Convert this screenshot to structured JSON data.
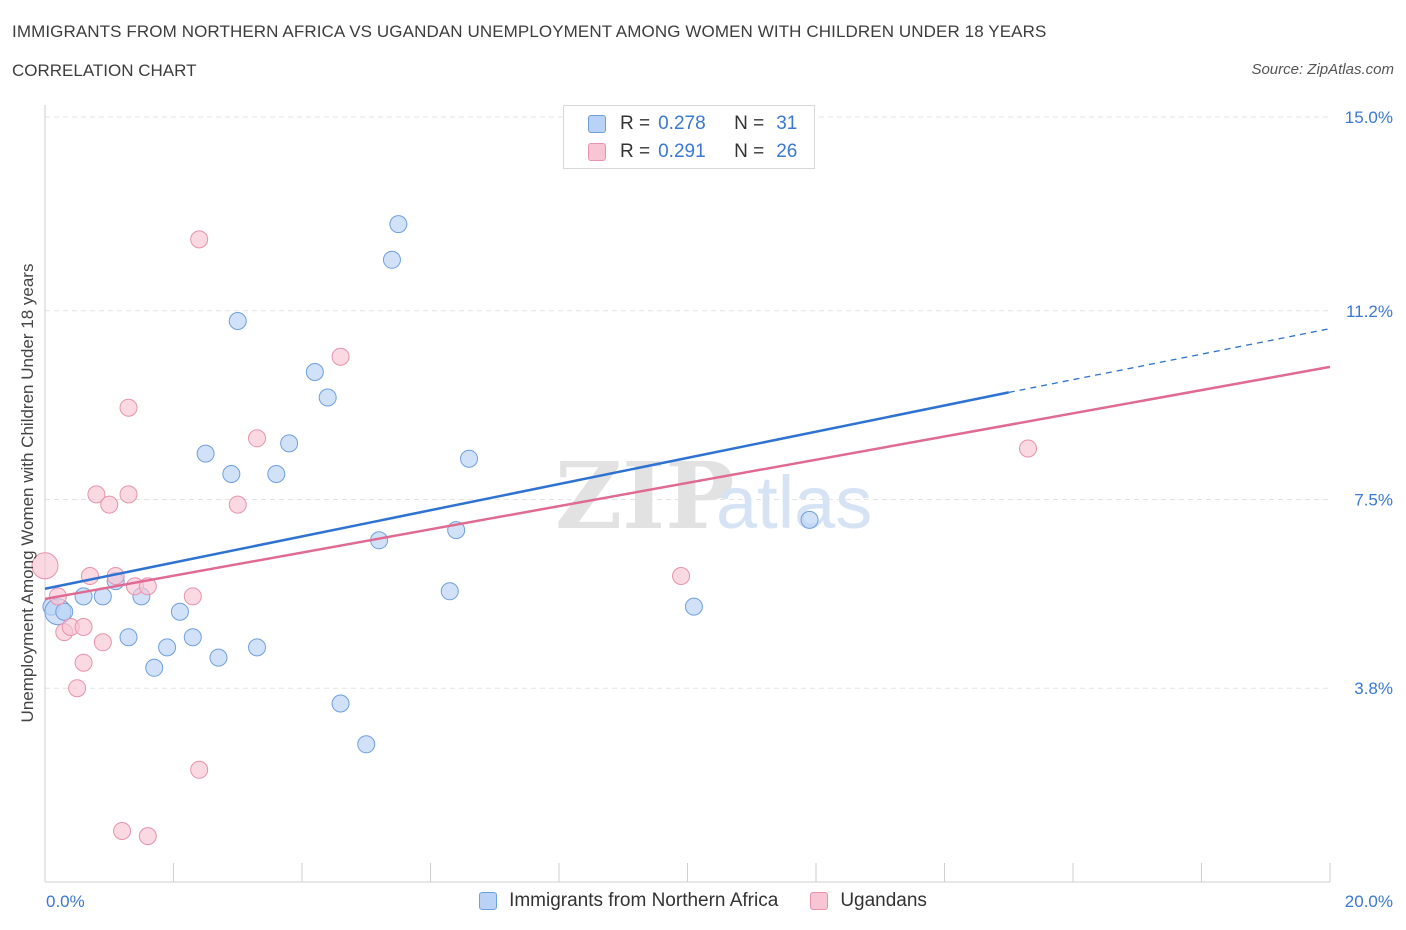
{
  "header": {
    "title": "IMMIGRANTS FROM NORTHERN AFRICA VS UGANDAN UNEMPLOYMENT AMONG WOMEN WITH CHILDREN UNDER 18 YEARS",
    "subtitle": "CORRELATION CHART",
    "source": "Source: ZipAtlas.com"
  },
  "legend": {
    "r_label": "R =",
    "n_label": "N =",
    "series": [
      {
        "r": "0.278",
        "n": "31"
      },
      {
        "r": "0.291",
        "n": "26"
      }
    ]
  },
  "colors": {
    "blue_fill": "#b9d2f5",
    "blue_stroke": "#6f9fdf",
    "blue_line": "#2e72d2",
    "pink_fill": "#f7c5d4",
    "pink_stroke": "#e892ad",
    "pink_line": "#e06a92",
    "grid": "#e3e3e3",
    "tick_text": "#3a78d4"
  },
  "watermark": {
    "zip": "ZIP",
    "atlas": "atlas"
  },
  "chart_data": {
    "type": "scatter",
    "xlabel": "",
    "ylabel": "Unemployment Among Women with Children Under 18 years",
    "xlim": [
      0,
      20
    ],
    "ylim": [
      0,
      15
    ],
    "x_tick_labels": [
      "0.0%",
      "20.0%"
    ],
    "y_ticks": [
      3.8,
      7.5,
      11.2,
      15.0
    ],
    "y_tick_labels": [
      "3.8%",
      "7.5%",
      "11.2%",
      "15.0%"
    ],
    "grid": true,
    "series": [
      {
        "name": "Immigrants from Northern Africa",
        "color": "blue",
        "points": [
          [
            0.1,
            5.4
          ],
          [
            0.2,
            5.3
          ],
          [
            0.3,
            5.3
          ],
          [
            0.9,
            5.6
          ],
          [
            1.1,
            5.9
          ],
          [
            1.3,
            4.8
          ],
          [
            1.5,
            5.6
          ],
          [
            1.7,
            4.2
          ],
          [
            1.9,
            4.6
          ],
          [
            2.1,
            5.3
          ],
          [
            2.3,
            4.8
          ],
          [
            2.5,
            8.4
          ],
          [
            2.7,
            4.4
          ],
          [
            2.9,
            8.0
          ],
          [
            3.0,
            11.0
          ],
          [
            3.3,
            4.6
          ],
          [
            3.6,
            8.0
          ],
          [
            3.8,
            8.6
          ],
          [
            4.2,
            10.0
          ],
          [
            4.4,
            9.5
          ],
          [
            4.6,
            3.5
          ],
          [
            5.2,
            6.7
          ],
          [
            5.0,
            2.7
          ],
          [
            5.4,
            12.2
          ],
          [
            5.5,
            12.9
          ],
          [
            6.3,
            5.7
          ],
          [
            6.4,
            6.9
          ],
          [
            6.6,
            8.3
          ],
          [
            10.1,
            5.4
          ],
          [
            11.9,
            7.1
          ],
          [
            0.6,
            5.6
          ]
        ],
        "trend": {
          "x0": 0,
          "y0": 5.75,
          "x1": 15.0,
          "y1": 9.6,
          "dashed_to_x": 20,
          "dashed_to_y": 10.85
        }
      },
      {
        "name": "Ugandans",
        "color": "pink",
        "points": [
          [
            0.0,
            6.2
          ],
          [
            0.2,
            5.6
          ],
          [
            0.3,
            4.9
          ],
          [
            0.4,
            5.0
          ],
          [
            0.5,
            3.8
          ],
          [
            0.6,
            5.0
          ],
          [
            0.6,
            4.3
          ],
          [
            0.7,
            6.0
          ],
          [
            0.8,
            7.6
          ],
          [
            0.9,
            4.7
          ],
          [
            1.0,
            7.4
          ],
          [
            1.1,
            6.0
          ],
          [
            1.3,
            7.6
          ],
          [
            1.3,
            9.3
          ],
          [
            1.2,
            1.0
          ],
          [
            1.4,
            5.8
          ],
          [
            1.6,
            5.8
          ],
          [
            1.6,
            0.9
          ],
          [
            2.3,
            5.6
          ],
          [
            2.4,
            2.2
          ],
          [
            2.4,
            12.6
          ],
          [
            3.0,
            7.4
          ],
          [
            3.3,
            8.7
          ],
          [
            4.6,
            10.3
          ],
          [
            9.9,
            6.0
          ],
          [
            15.3,
            8.5
          ]
        ],
        "trend": {
          "x0": 0,
          "y0": 5.55,
          "x1": 20,
          "y1": 10.1
        }
      }
    ]
  }
}
